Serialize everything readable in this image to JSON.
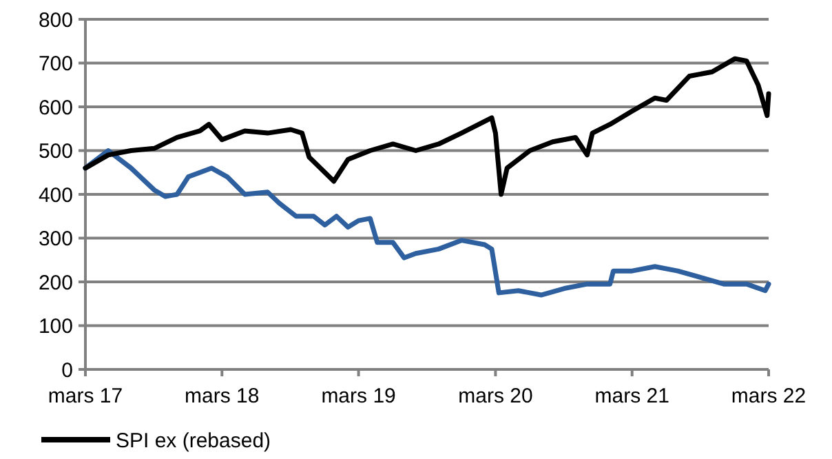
{
  "chart_data": {
    "type": "line",
    "xlim": [
      "2017-03-01",
      "2022-03-01"
    ],
    "ylim": [
      0,
      800
    ],
    "yticks": [
      0,
      100,
      200,
      300,
      400,
      500,
      600,
      700,
      800
    ],
    "xticks": [
      {
        "value": "2017-03-01",
        "label": "mars 17"
      },
      {
        "value": "2018-03-01",
        "label": "mars 18"
      },
      {
        "value": "2019-03-01",
        "label": "mars 19"
      },
      {
        "value": "2020-03-01",
        "label": "mars 20"
      },
      {
        "value": "2021-03-01",
        "label": "mars 21"
      },
      {
        "value": "2022-03-01",
        "label": "mars 22"
      }
    ],
    "grid": "y",
    "legend": "bottom left",
    "line_style": "solid",
    "series": [
      {
        "color": "#2e5f9e",
        "x": [
          "2017-03-01",
          "2017-05-01",
          "2017-07-01",
          "2017-09-01",
          "2017-10-01",
          "2017-11-01",
          "2017-12-01",
          "2018-02-01",
          "2018-03-15",
          "2018-05-01",
          "2018-07-01",
          "2018-08-01",
          "2018-09-15",
          "2018-11-01",
          "2018-12-01",
          "2019-01-01",
          "2019-02-01",
          "2019-03-01",
          "2019-04-01",
          "2019-04-20",
          "2019-06-01",
          "2019-07-01",
          "2019-08-01",
          "2019-10-01",
          "2019-12-01",
          "2020-02-01",
          "2020-02-20",
          "2020-03-10",
          "2020-05-01",
          "2020-07-01",
          "2020-09-01",
          "2020-11-01",
          "2021-01-01",
          "2021-01-10",
          "2021-03-01",
          "2021-05-01",
          "2021-07-01",
          "2021-09-01",
          "2021-11-01",
          "2022-01-01",
          "2022-02-20",
          "2022-03-01"
        ],
        "values": [
          460,
          500,
          460,
          410,
          395,
          400,
          440,
          460,
          440,
          400,
          405,
          380,
          350,
          350,
          330,
          350,
          325,
          340,
          345,
          290,
          290,
          255,
          265,
          275,
          295,
          285,
          275,
          175,
          180,
          170,
          185,
          195,
          195,
          225,
          225,
          235,
          225,
          210,
          195,
          195,
          180,
          195
        ]
      },
      {
        "name": "SPI ex (rebased)",
        "color": "#000000",
        "x": [
          "2017-03-01",
          "2017-05-01",
          "2017-07-01",
          "2017-09-01",
          "2017-11-01",
          "2018-01-01",
          "2018-01-25",
          "2018-03-01",
          "2018-05-01",
          "2018-07-01",
          "2018-09-01",
          "2018-10-01",
          "2018-10-20",
          "2018-12-25",
          "2019-02-01",
          "2019-04-01",
          "2019-06-01",
          "2019-08-01",
          "2019-10-01",
          "2019-12-01",
          "2020-02-20",
          "2020-03-01",
          "2020-03-16",
          "2020-04-01",
          "2020-06-01",
          "2020-08-01",
          "2020-10-01",
          "2020-11-01",
          "2020-11-15",
          "2021-01-01",
          "2021-03-01",
          "2021-05-01",
          "2021-06-01",
          "2021-08-01",
          "2021-10-01",
          "2021-12-01",
          "2022-01-01",
          "2022-01-15",
          "2022-02-01",
          "2022-02-25",
          "2022-03-01"
        ],
        "values": [
          460,
          490,
          500,
          505,
          530,
          545,
          560,
          525,
          545,
          540,
          548,
          540,
          485,
          430,
          480,
          500,
          515,
          500,
          515,
          540,
          575,
          540,
          400,
          460,
          500,
          520,
          530,
          490,
          540,
          560,
          590,
          620,
          615,
          670,
          680,
          710,
          705,
          680,
          650,
          580,
          630
        ]
      }
    ]
  }
}
